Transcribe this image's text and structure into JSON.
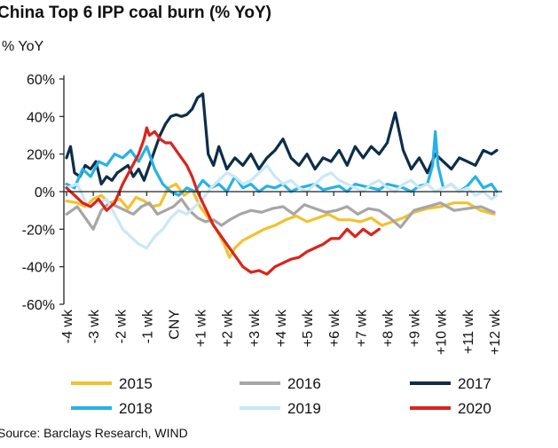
{
  "header": {
    "title": "China Top 6 IPP coal burn (% YoY)",
    "source": "Source: Barclays Research, WIND"
  },
  "chart_data": {
    "type": "line",
    "title": "China Top 6 IPP coal burn (% YoY)",
    "ylabel": "% YoY",
    "xlabel": "",
    "ylim": [
      -60,
      60
    ],
    "yticks": [
      -60,
      -40,
      -20,
      0,
      20,
      40,
      60
    ],
    "ytick_labels": [
      "-60%",
      "-40%",
      "-20%",
      "0%",
      "20%",
      "40%",
      "60%"
    ],
    "xlim": [
      -4.1,
      12.3
    ],
    "xtick_positions": [
      -4,
      -3,
      -2,
      -1,
      0,
      1,
      2,
      3,
      4,
      5,
      6,
      7,
      8,
      9,
      10,
      11,
      12
    ],
    "xtick_labels": [
      "-4 wk",
      "-3 wk",
      "-2 wk",
      "-1 wk",
      "CNY",
      "+1 wk",
      "+2 wk",
      "+3 wk",
      "+4 wk",
      "+5 wk",
      "+6 wk",
      "+7 wk",
      "+8 wk",
      "+9 wk",
      "+10 wk",
      "+11 wk",
      "+12 wk"
    ],
    "grid": false,
    "legend": "bottom",
    "series": [
      {
        "name": "2015",
        "color": "#f2c12e",
        "x": [
          -4,
          -3.6,
          -3.3,
          -3,
          -2.7,
          -2.4,
          -2,
          -1.7,
          -1.4,
          -1.1,
          -0.8,
          -0.5,
          -0.2,
          0.1,
          0.4,
          0.7,
          1,
          1.3,
          1.6,
          1.9,
          2.1,
          2.3,
          2.6,
          3,
          3.4,
          3.8,
          4.2,
          4.6,
          5,
          5.4,
          5.8,
          6.2,
          6.6,
          7,
          7.4,
          7.8,
          8.2,
          8.6,
          9,
          9.5,
          10,
          10.5,
          11,
          11.5,
          12
        ],
        "y": [
          -5,
          -6,
          -8,
          -4,
          -2,
          -6,
          -4,
          -9,
          -3,
          -5,
          -8,
          -7,
          2,
          4,
          -2,
          1,
          -8,
          -14,
          -20,
          -28,
          -35,
          -30,
          -26,
          -23,
          -20,
          -18,
          -15,
          -13,
          -16,
          -14,
          -12,
          -15,
          -15,
          -16,
          -14,
          -18,
          -16,
          -14,
          -11,
          -9,
          -8,
          -6,
          -6,
          -10,
          -12
        ]
      },
      {
        "name": "2016",
        "color": "#a6a6a6",
        "x": [
          -4,
          -3.6,
          -3.3,
          -3,
          -2.7,
          -2.4,
          -2.1,
          -1.8,
          -1.5,
          -1.2,
          -0.9,
          -0.6,
          -0.3,
          0,
          0.3,
          0.6,
          0.9,
          1.2,
          1.5,
          1.8,
          2.1,
          2.5,
          2.9,
          3.3,
          3.7,
          4.1,
          4.5,
          4.9,
          5.3,
          5.7,
          6.1,
          6.5,
          6.9,
          7.3,
          7.7,
          8.1,
          8.5,
          9,
          9.5,
          10,
          10.5,
          11,
          11.5,
          12
        ],
        "y": [
          -12,
          -8,
          -14,
          -20,
          -10,
          -6,
          -8,
          -10,
          -12,
          -8,
          -6,
          -12,
          -10,
          -8,
          -4,
          -10,
          -14,
          -16,
          -15,
          -18,
          -15,
          -12,
          -10,
          -11,
          -9,
          -8,
          -12,
          -7,
          -9,
          -11,
          -10,
          -8,
          -12,
          -9,
          -10,
          -14,
          -19,
          -10,
          -8,
          -6,
          -10,
          -9,
          -8,
          -11
        ]
      },
      {
        "name": "2017",
        "color": "#0c2e49",
        "x": [
          -4,
          -3.85,
          -3.7,
          -3.5,
          -3.3,
          -3.1,
          -2.9,
          -2.7,
          -2.5,
          -2.3,
          -2.1,
          -1.9,
          -1.7,
          -1.5,
          -1.3,
          -1.1,
          -0.9,
          -0.7,
          -0.5,
          -0.3,
          -0.1,
          0.1,
          0.3,
          0.5,
          0.7,
          0.9,
          1.1,
          1.3,
          1.5,
          1.7,
          2,
          2.3,
          2.6,
          2.9,
          3.2,
          3.5,
          3.8,
          4.1,
          4.4,
          4.7,
          5,
          5.3,
          5.6,
          5.9,
          6.2,
          6.5,
          6.8,
          7.1,
          7.4,
          7.7,
          8,
          8.3,
          8.6,
          8.9,
          9.2,
          9.5,
          9.8,
          10.1,
          10.4,
          10.7,
          11,
          11.3,
          11.6,
          11.9,
          12.1
        ],
        "y": [
          18,
          24,
          10,
          8,
          14,
          12,
          16,
          4,
          8,
          6,
          10,
          12,
          14,
          8,
          12,
          6,
          14,
          22,
          30,
          36,
          40,
          41,
          40,
          41,
          44,
          50,
          52,
          20,
          14,
          24,
          12,
          18,
          14,
          20,
          12,
          18,
          22,
          28,
          18,
          14,
          20,
          12,
          18,
          16,
          22,
          14,
          24,
          18,
          24,
          20,
          26,
          42,
          22,
          12,
          18,
          10,
          20,
          16,
          12,
          18,
          16,
          14,
          22,
          20,
          22
        ]
      },
      {
        "name": "2018",
        "color": "#27b2e5",
        "x": [
          -4,
          -3.7,
          -3.4,
          -3.1,
          -2.8,
          -2.5,
          -2.2,
          -1.9,
          -1.6,
          -1.3,
          -1,
          -0.7,
          -0.4,
          -0.1,
          0.2,
          0.5,
          0.8,
          1.1,
          1.4,
          1.7,
          2,
          2.3,
          2.6,
          2.9,
          3.2,
          3.5,
          3.8,
          4.1,
          4.4,
          4.7,
          5,
          5.3,
          5.6,
          5.9,
          6.2,
          6.5,
          6.8,
          7.1,
          7.4,
          7.7,
          8,
          8.3,
          8.6,
          8.9,
          9.2,
          9.5,
          9.7,
          9.8,
          9.9,
          10.1,
          10.4,
          10.7,
          11,
          11.3,
          11.6,
          11.9,
          12.1
        ],
        "y": [
          4,
          2,
          12,
          8,
          16,
          14,
          20,
          18,
          22,
          16,
          24,
          12,
          4,
          0,
          -2,
          2,
          0,
          6,
          2,
          4,
          0,
          8,
          2,
          4,
          0,
          3,
          2,
          4,
          0,
          2,
          3,
          4,
          1,
          2,
          3,
          0,
          4,
          3,
          2,
          1,
          4,
          3,
          2,
          0,
          3,
          4,
          14,
          32,
          14,
          2,
          4,
          0,
          3,
          8,
          2,
          4,
          0
        ]
      },
      {
        "name": "2019",
        "color": "#c9e8f5",
        "x": [
          -4,
          -3.6,
          -3.2,
          -2.8,
          -2.5,
          -2.2,
          -1.9,
          -1.6,
          -1.3,
          -1,
          -0.7,
          -0.4,
          -0.1,
          0.2,
          0.5,
          0.8,
          1.1,
          1.4,
          1.7,
          2,
          2.3,
          2.6,
          2.9,
          3.2,
          3.5,
          3.8,
          4.1,
          4.4,
          4.7,
          5,
          5.3,
          5.6,
          5.9,
          6.2,
          6.5,
          6.8,
          7.1,
          7.4,
          7.7,
          8,
          8.3,
          8.6,
          8.9,
          9.2,
          9.5,
          9.8,
          10.1,
          10.4,
          10.7,
          11,
          11.3,
          11.6,
          11.9,
          12.1
        ],
        "y": [
          2,
          4,
          -8,
          -6,
          -4,
          -12,
          -20,
          -24,
          -28,
          -30,
          -24,
          -20,
          -14,
          -10,
          -12,
          -8,
          -4,
          2,
          6,
          10,
          8,
          4,
          6,
          10,
          14,
          8,
          4,
          6,
          2,
          0,
          4,
          8,
          10,
          6,
          4,
          2,
          0,
          4,
          6,
          2,
          0,
          4,
          6,
          2,
          4,
          0,
          2,
          4,
          0,
          2,
          -2,
          0,
          -4,
          -2
        ]
      },
      {
        "name": "2020",
        "color": "#d9241c",
        "x": [
          -4,
          -3.7,
          -3.4,
          -3.1,
          -2.8,
          -2.5,
          -2.2,
          -1.9,
          -1.6,
          -1.3,
          -1.1,
          -1,
          -0.9,
          -0.7,
          -0.5,
          -0.3,
          -0.1,
          0.1,
          0.3,
          0.5,
          0.7,
          0.9,
          1.1,
          1.3,
          1.5,
          1.7,
          2,
          2.3,
          2.6,
          2.9,
          3.2,
          3.5,
          3.8,
          4.1,
          4.4,
          4.7,
          5,
          5.3,
          5.6,
          5.9,
          6.2,
          6.5,
          6.8,
          7.1,
          7.4,
          7.7
        ],
        "y": [
          2,
          -2,
          -6,
          -8,
          -4,
          -10,
          -6,
          4,
          12,
          20,
          28,
          34,
          30,
          32,
          28,
          26,
          26,
          22,
          18,
          14,
          8,
          0,
          -6,
          -12,
          -18,
          -22,
          -28,
          -34,
          -40,
          -43,
          -42,
          -44,
          -40,
          -38,
          -36,
          -35,
          -32,
          -30,
          -28,
          -25,
          -25,
          -20,
          -24,
          -20,
          -23,
          -20
        ]
      }
    ]
  }
}
